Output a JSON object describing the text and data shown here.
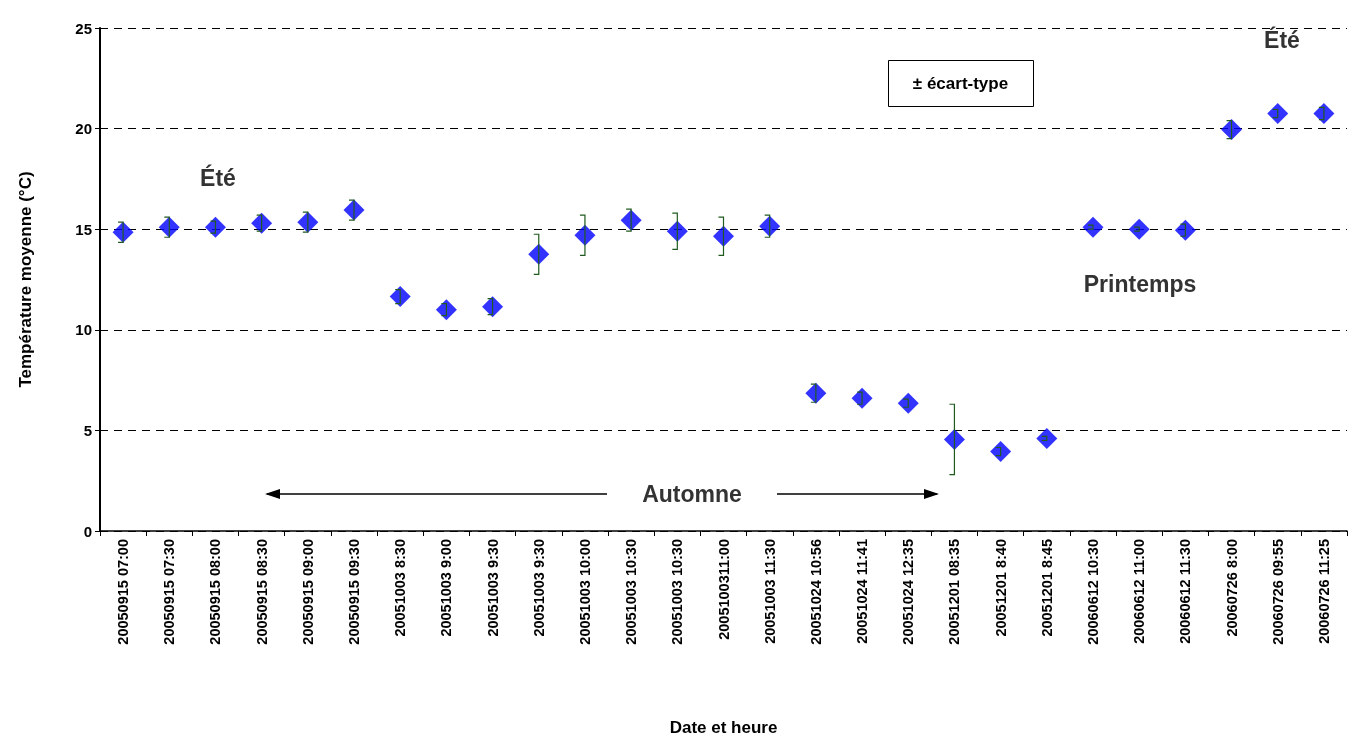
{
  "chart_data": {
    "type": "scatter",
    "xlabel": "Date et heure",
    "ylabel": "Température moyenne (°C)",
    "categories": [
      "20050915 07:00",
      "20050915 07:30",
      "20050915 08:00",
      "20050915 08:30",
      "20050915 09:00",
      "20050915 09:30",
      "20051003 8:30",
      "20051003 9:00",
      "20051003 9:30",
      "20051003 9:30",
      "20051003 10:00",
      "20051003 10:30",
      "20051003 10:30",
      "2005100311:00",
      "20051003 11:30",
      "20051024 10:56",
      "20051024 11:41",
      "20051024 12:35",
      "20051201 08:35",
      "20051201 8:40",
      "20051201 8:45",
      "20060612 10:30",
      "20060612 11:00",
      "20060612 11:30",
      "20060726 8:00",
      "20060726 09:55",
      "20060726 11:25"
    ],
    "series": [
      {
        "color": "#0000ff",
        "values": [
          14.85,
          15.1,
          15.1,
          15.3,
          15.35,
          15.95,
          11.65,
          11.0,
          11.15,
          13.75,
          14.7,
          15.45,
          14.9,
          14.65,
          15.15,
          6.85,
          6.6,
          6.35,
          4.55,
          3.95,
          4.6,
          15.1,
          15.0,
          14.95,
          19.95,
          20.75,
          20.75
        ],
        "errors": [
          0.5,
          0.5,
          0.3,
          0.4,
          0.5,
          0.5,
          0.35,
          0.3,
          0.4,
          1.0,
          1.0,
          0.55,
          0.9,
          0.95,
          0.55,
          0.45,
          0.3,
          0.2,
          1.75,
          0.2,
          0.1,
          0.1,
          0.1,
          0.3,
          0.45,
          0.2,
          0.3
        ]
      }
    ],
    "ylim": [
      0,
      25
    ],
    "yticks": [
      0,
      5,
      10,
      15,
      20,
      25
    ],
    "grid": "y",
    "marker": "diamond",
    "annotations": [
      "Été",
      "Été",
      "Printemps",
      "Automne",
      "± écart-type"
    ]
  }
}
